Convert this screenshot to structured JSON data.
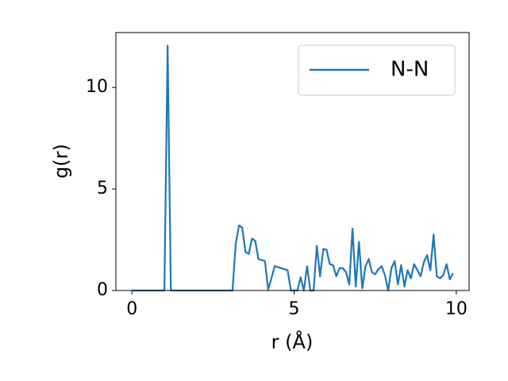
{
  "chart_data": {
    "type": "line",
    "xlabel": "r (Å)",
    "ylabel": "g(r)",
    "x": [
      0,
      0.1,
      0.2,
      0.3,
      0.4,
      0.5,
      0.6,
      0.7,
      0.8,
      0.9,
      1,
      1.1,
      1.2,
      1.3,
      1.4,
      1.5,
      1.6,
      1.7,
      1.8,
      1.9,
      2,
      2.1,
      2.2,
      2.3,
      2.4,
      2.5,
      2.6,
      2.7,
      2.8,
      2.9,
      3,
      3.1,
      3.2,
      3.3,
      3.4,
      3.5,
      3.6,
      3.7,
      3.8,
      3.9,
      4,
      4.1,
      4.2,
      4.3,
      4.4,
      4.5,
      4.6,
      4.7,
      4.8,
      4.9,
      5,
      5.1,
      5.2,
      5.3,
      5.4,
      5.5,
      5.6,
      5.7,
      5.8,
      5.9,
      6,
      6.1,
      6.2,
      6.3,
      6.4,
      6.5,
      6.6,
      6.7,
      6.8,
      6.9,
      7,
      7.1,
      7.2,
      7.3,
      7.4,
      7.5,
      7.6,
      7.7,
      7.8,
      7.9,
      8,
      8.1,
      8.2,
      8.3,
      8.4,
      8.5,
      8.6,
      8.7,
      8.8,
      8.9,
      9,
      9.1,
      9.2,
      9.3,
      9.4,
      9.5,
      9.6,
      9.7,
      9.8,
      9.9
    ],
    "series": [
      {
        "name": "N-N",
        "color": "#1f77b4",
        "values": [
          0,
          0,
          0,
          0,
          0,
          0,
          0,
          0,
          0,
          0,
          0,
          12.05,
          0,
          0,
          0,
          0,
          0,
          0,
          0,
          0,
          0,
          0,
          0,
          0,
          0,
          0,
          0,
          0,
          0,
          0,
          0,
          0,
          2.3,
          3.2,
          3.1,
          1.9,
          1.8,
          2.55,
          2.45,
          1.55,
          1.5,
          1.45,
          0.05,
          0.6,
          1.2,
          1.15,
          1.1,
          1.05,
          1.0,
          0,
          0,
          0,
          0.65,
          0,
          1.2,
          0,
          0,
          2.2,
          0.7,
          2.05,
          2.0,
          1.3,
          1.25,
          0.7,
          1.1,
          1.1,
          0.9,
          0.3,
          3.05,
          0.2,
          2.4,
          0.1,
          1.2,
          1.55,
          0.9,
          0.8,
          1.05,
          1.2,
          0.75,
          0,
          1.1,
          1.45,
          0.3,
          1.25,
          0.2,
          1.0,
          0.6,
          1.3,
          1.0,
          0.7,
          1.4,
          1.75,
          1.0,
          2.75,
          0.7,
          0.6,
          0.75,
          1.3,
          0.55,
          0.85
        ]
      }
    ],
    "xlim": [
      -0.495,
      10.395
    ],
    "ylim": [
      0,
      12.7
    ],
    "xticks": [
      0,
      5,
      10
    ],
    "yticks": [
      0,
      5,
      10
    ],
    "legend": "upper right"
  }
}
